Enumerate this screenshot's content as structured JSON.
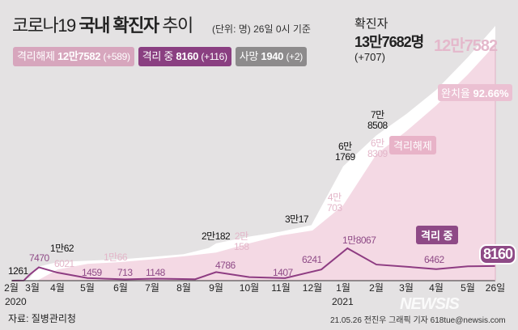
{
  "header": {
    "title_light": "코로나19",
    "title_bold": "국내 확진자",
    "title_tail": "추이",
    "unit_note": "(단위: 명)  26일 0시 기준"
  },
  "badges": [
    {
      "label": "격리해제",
      "value": "12만7582",
      "delta": "(+589)",
      "color": "#d7a6bd"
    },
    {
      "label": "격리 중",
      "value": "8160",
      "delta": "(+116)",
      "color": "#8a3f81"
    },
    {
      "label": "사망",
      "value": "1940",
      "delta": "(+2)",
      "color": "#8d8b8c"
    }
  ],
  "total": {
    "title": "확진자",
    "value": "13만7682명",
    "delta": "(+707)"
  },
  "released_big": "12만7582",
  "recovery_rate": {
    "label": "완치율",
    "value": "92.66%"
  },
  "series_tags": {
    "released": "격리해제",
    "isolated": "격리 중"
  },
  "chart_data": {
    "type": "area",
    "x_ticks": [
      "2월",
      "3월",
      "4월",
      "5월",
      "6월",
      "7월",
      "8월",
      "9월",
      "10월",
      "11월",
      "12월",
      "1월",
      "2월",
      "3월",
      "4월",
      "5월",
      "26일"
    ],
    "x_tick_dates": [
      "2020-02-01",
      "2020-03-01",
      "2020-04-01",
      "2020-05-01",
      "2020-06-01",
      "2020-07-01",
      "2020-08-01",
      "2020-09-01",
      "2020-10-01",
      "2020-11-01",
      "2020-12-01",
      "2021-01-01",
      "2021-02-01",
      "2021-03-01",
      "2021-04-01",
      "2021-05-01",
      "2021-05-26"
    ],
    "years": [
      "2020",
      "2021"
    ],
    "colors": {
      "confirmed": "#ffffff",
      "released": "#f4d9e4",
      "isolated": "#8e3c82"
    },
    "series": [
      {
        "key": "confirmed",
        "points": [
          [
            "2020-02-01",
            12
          ],
          [
            "2020-02-29",
            1261
          ],
          [
            "2020-03-10",
            7470
          ],
          [
            "2020-04-01",
            10062
          ],
          [
            "2020-05-01",
            10774
          ],
          [
            "2020-06-01",
            11541
          ],
          [
            "2020-07-01",
            12850
          ],
          [
            "2020-08-01",
            14305
          ],
          [
            "2020-08-25",
            17665
          ],
          [
            "2020-09-01",
            20182
          ],
          [
            "2020-10-01",
            23812
          ],
          [
            "2020-11-01",
            26511
          ],
          [
            "2020-11-30",
            30017
          ],
          [
            "2021-01-01",
            61769
          ],
          [
            "2021-02-01",
            78508
          ],
          [
            "2021-03-01",
            90029
          ],
          [
            "2021-04-01",
            103088
          ],
          [
            "2021-05-01",
            120673
          ],
          [
            "2021-05-26",
            137682
          ]
        ]
      },
      {
        "key": "released",
        "points": [
          [
            "2020-02-01",
            0
          ],
          [
            "2020-03-10",
            200
          ],
          [
            "2020-04-01",
            6021
          ],
          [
            "2020-05-01",
            9072
          ],
          [
            "2020-06-01",
            10066
          ],
          [
            "2020-07-01",
            11537
          ],
          [
            "2020-08-01",
            13183
          ],
          [
            "2020-09-01",
            15198
          ],
          [
            "2020-10-01",
            20158
          ],
          [
            "2020-11-01",
            24395
          ],
          [
            "2020-12-01",
            27103
          ],
          [
            "2021-01-01",
            40703
          ],
          [
            "2021-02-01",
            68309
          ],
          [
            "2021-03-01",
            80759
          ],
          [
            "2021-04-01",
            94694
          ],
          [
            "2021-05-01",
            111426
          ],
          [
            "2021-05-26",
            127582
          ]
        ]
      },
      {
        "key": "isolated",
        "points": [
          [
            "2020-02-01",
            0
          ],
          [
            "2020-02-20",
            100
          ],
          [
            "2020-03-01",
            3500
          ],
          [
            "2020-03-11",
            7470
          ],
          [
            "2020-04-01",
            4500
          ],
          [
            "2020-05-01",
            1459
          ],
          [
            "2020-06-05",
            713
          ],
          [
            "2020-07-05",
            1148
          ],
          [
            "2020-08-12",
            800
          ],
          [
            "2020-09-01",
            4786
          ],
          [
            "2020-10-01",
            2000
          ],
          [
            "2020-11-05",
            1407
          ],
          [
            "2020-12-10",
            6241
          ],
          [
            "2021-01-05",
            18067
          ],
          [
            "2021-02-01",
            9000
          ],
          [
            "2021-03-01",
            7800
          ],
          [
            "2021-04-01",
            6462
          ],
          [
            "2021-05-01",
            8000
          ],
          [
            "2021-05-26",
            8160
          ]
        ]
      }
    ],
    "annotations": {
      "confirmed": [
        "1261",
        "1만62",
        "2만182",
        "3만17",
        "6만\n1769",
        "7만\n8508"
      ],
      "released": [
        "6021",
        "1만66",
        "2만\n158",
        "4만\n703",
        "6만\n8309"
      ],
      "isolated": [
        "7470",
        "1459",
        "713",
        "1148",
        "4786",
        "1407",
        "6241",
        "1만8067",
        "6462",
        "8160"
      ]
    }
  },
  "footer": {
    "source": "자료: 질병관리청",
    "credit": "21.05.26 전진우 그래픽 기자 618tue@newsis.com",
    "logo": "NEWSIS"
  }
}
